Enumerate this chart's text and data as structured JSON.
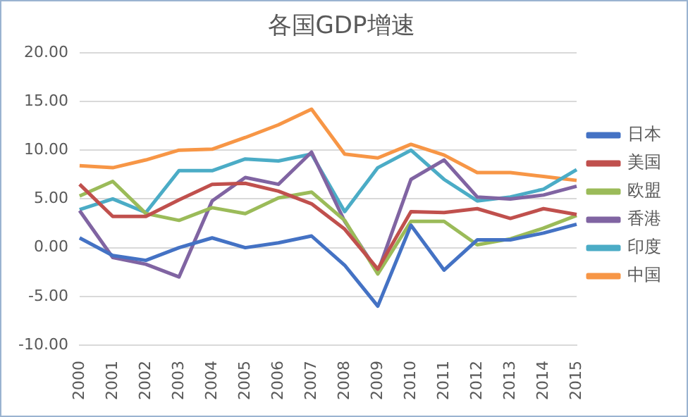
{
  "chart_data": {
    "type": "line",
    "title": "各国GDP增速",
    "categories": [
      "2000",
      "2001",
      "2002",
      "2003",
      "2004",
      "2005",
      "2006",
      "2007",
      "2008",
      "2009",
      "2010",
      "2011",
      "2012",
      "2013",
      "2014",
      "2015"
    ],
    "series": [
      {
        "name": "日本",
        "color": "#4472c4",
        "values": [
          1.0,
          -0.8,
          -1.3,
          0,
          1.0,
          0,
          0.5,
          1.2,
          -1.8,
          -6.0,
          2.3,
          -2.3,
          0.8,
          0.8,
          1.5,
          2.4
        ]
      },
      {
        "name": "美国",
        "color": "#c0504d",
        "values": [
          6.5,
          3.2,
          3.2,
          4.9,
          6.5,
          6.6,
          5.8,
          4.5,
          1.9,
          -2.2,
          3.7,
          3.6,
          4.0,
          3.0,
          4.0,
          3.4
        ]
      },
      {
        "name": "欧盟",
        "color": "#9bbb59",
        "values": [
          5.3,
          6.8,
          3.5,
          2.8,
          4.1,
          3.5,
          5.1,
          5.7,
          2.8,
          -2.7,
          2.7,
          2.7,
          0.3,
          0.9,
          2.0,
          3.3
        ]
      },
      {
        "name": "香港",
        "color": "#8064a2",
        "values": [
          3.8,
          -1.0,
          -1.7,
          -3.0,
          4.8,
          7.2,
          6.5,
          9.8,
          2.7,
          -2.5,
          7.0,
          9.0,
          5.2,
          5.0,
          5.4,
          6.3
        ]
      },
      {
        "name": "印度",
        "color": "#4bacc6",
        "values": [
          3.9,
          5.0,
          3.6,
          7.9,
          7.9,
          9.1,
          8.9,
          9.6,
          3.7,
          8.2,
          10.0,
          7.0,
          4.8,
          5.2,
          6.0,
          8.0
        ]
      },
      {
        "name": "中国",
        "color": "#f79646",
        "values": [
          8.4,
          8.2,
          9.0,
          10.0,
          10.1,
          11.3,
          12.6,
          14.2,
          9.6,
          9.2,
          10.6,
          9.5,
          7.7,
          7.7,
          7.3,
          6.9
        ]
      }
    ],
    "ylim": [
      -10,
      20
    ],
    "yticks": [
      {
        "value": -10,
        "label": "-10.00"
      },
      {
        "value": -5,
        "label": "-5.00"
      },
      {
        "value": 0,
        "label": "0.00"
      },
      {
        "value": 5,
        "label": "5.00"
      },
      {
        "value": 10,
        "label": "10.00"
      },
      {
        "value": 15,
        "label": "15.00"
      },
      {
        "value": 20,
        "label": "20.00"
      }
    ],
    "grid": "y",
    "legend": "right",
    "marker": "none",
    "line_style": "solid"
  }
}
